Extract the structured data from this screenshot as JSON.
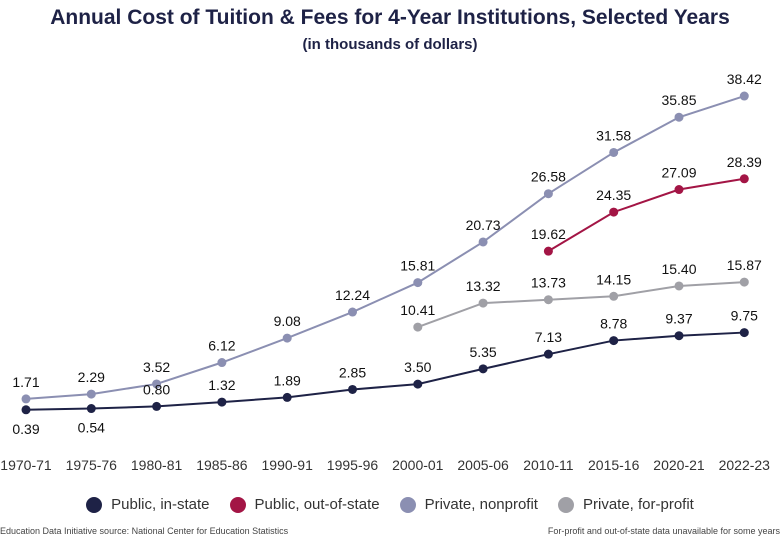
{
  "chart_data": {
    "type": "line",
    "title": "Annual Cost of Tuition & Fees for 4-Year Institutions, Selected Years",
    "subtitle": "(in thousands of dollars)",
    "categories": [
      "1970-71",
      "1975-76",
      "1980-81",
      "1985-86",
      "1990-91",
      "1995-96",
      "2000-01",
      "2005-06",
      "2010-11",
      "2015-16",
      "2020-21",
      "2022-23"
    ],
    "ylim": [
      0,
      40
    ],
    "grid": false,
    "legend_position": "bottom",
    "series": [
      {
        "name": "Public, in-state",
        "color": "#1e2246",
        "values": [
          0.39,
          0.54,
          0.8,
          1.32,
          1.89,
          2.85,
          3.5,
          5.35,
          7.13,
          8.78,
          9.37,
          9.75
        ]
      },
      {
        "name": "Public, out-of-state",
        "color": "#a31545",
        "values": [
          null,
          null,
          null,
          null,
          null,
          null,
          null,
          null,
          19.62,
          24.35,
          27.09,
          28.39
        ]
      },
      {
        "name": "Private, nonprofit",
        "color": "#8b8fb2",
        "values": [
          1.71,
          2.29,
          3.52,
          6.12,
          9.08,
          12.24,
          15.81,
          20.73,
          26.58,
          31.58,
          35.85,
          38.42
        ]
      },
      {
        "name": "Private, for-profit",
        "color": "#a0a0a6",
        "values": [
          null,
          null,
          null,
          null,
          null,
          null,
          10.41,
          13.32,
          13.73,
          14.15,
          15.4,
          15.87
        ]
      }
    ]
  },
  "footnotes": {
    "left": "Education Data Initiative source: National Center for Education Statistics",
    "right": "For-profit and out-of-state data unavailable for some years"
  }
}
